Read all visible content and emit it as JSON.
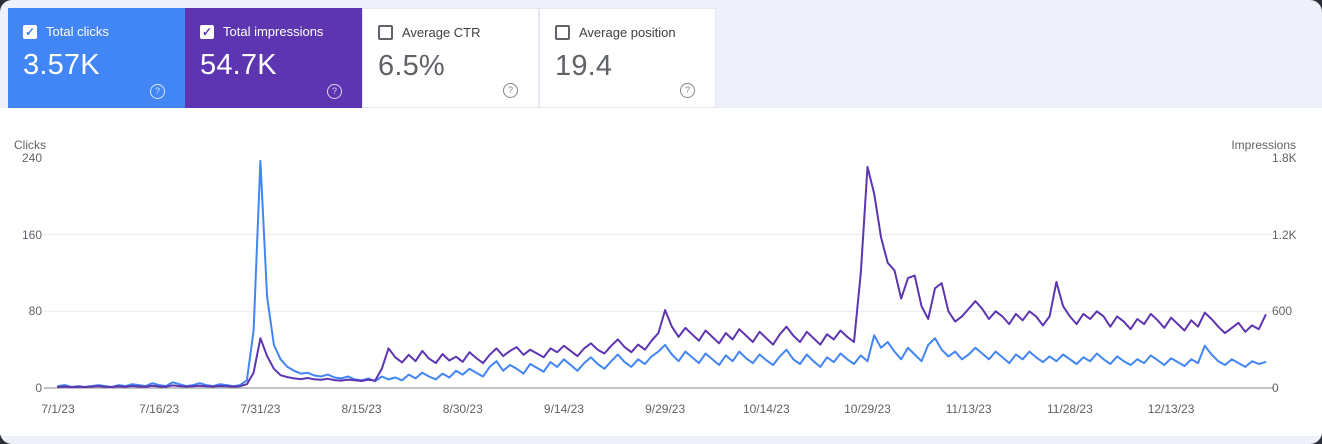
{
  "ui": {
    "check_glyph": "✓",
    "help_glyph": "?"
  },
  "colors": {
    "clicks": "#4285f4",
    "impressions": "#5e35b1"
  },
  "cards": [
    {
      "label": "Total clicks",
      "value": "3.57K",
      "checked": true,
      "color": "#4285f4"
    },
    {
      "label": "Total impressions",
      "value": "54.7K",
      "checked": true,
      "color": "#5e35b1"
    },
    {
      "label": "Average CTR",
      "value": "6.5%",
      "checked": false
    },
    {
      "label": "Average position",
      "value": "19.4",
      "checked": false
    }
  ],
  "chart_data": {
    "type": "line",
    "x_start": "7/1/23",
    "x_end": "12/27/23",
    "x_interval": "daily",
    "x_tick_labels": [
      "7/1/23",
      "7/16/23",
      "7/31/23",
      "8/15/23",
      "8/30/23",
      "9/14/23",
      "9/29/23",
      "10/14/23",
      "10/29/23",
      "11/13/23",
      "11/28/23",
      "12/13/23"
    ],
    "x_tick_days": [
      0,
      15,
      30,
      45,
      60,
      75,
      90,
      105,
      120,
      135,
      150,
      165
    ],
    "grid": "horizontal-light",
    "legend_position": "none",
    "left_axis": {
      "title": "Clicks",
      "ticks": [
        "240",
        "160",
        "80",
        "0"
      ],
      "tick_values": [
        240,
        160,
        80,
        0
      ],
      "max": 240
    },
    "right_axis": {
      "title": "Impressions",
      "ticks": [
        "1.8K",
        "1.2K",
        "600",
        "0"
      ],
      "tick_values": [
        1800,
        1200,
        600,
        0
      ],
      "max": 1800
    },
    "series": [
      {
        "name": "Total clicks",
        "axis": "left",
        "color": "#4285f4",
        "values": [
          2,
          3,
          1,
          2,
          1,
          2,
          3,
          2,
          1,
          3,
          2,
          4,
          3,
          2,
          5,
          3,
          2,
          6,
          4,
          2,
          3,
          5,
          3,
          2,
          4,
          3,
          2,
          3,
          8,
          60,
          237,
          95,
          45,
          30,
          22,
          18,
          15,
          16,
          13,
          12,
          14,
          11,
          10,
          12,
          9,
          8,
          10,
          7,
          12,
          9,
          11,
          8,
          14,
          10,
          16,
          12,
          9,
          15,
          11,
          18,
          14,
          20,
          16,
          12,
          22,
          28,
          18,
          24,
          20,
          15,
          25,
          21,
          17,
          27,
          22,
          30,
          24,
          18,
          26,
          32,
          25,
          20,
          28,
          35,
          27,
          22,
          30,
          25,
          33,
          38,
          45,
          35,
          28,
          38,
          32,
          26,
          36,
          30,
          24,
          34,
          28,
          38,
          31,
          26,
          35,
          29,
          24,
          33,
          40,
          30,
          25,
          35,
          28,
          22,
          32,
          27,
          36,
          30,
          25,
          34,
          28,
          55,
          42,
          48,
          38,
          30,
          42,
          35,
          28,
          45,
          52,
          40,
          33,
          38,
          30,
          35,
          42,
          36,
          30,
          38,
          32,
          26,
          35,
          30,
          38,
          32,
          27,
          33,
          28,
          35,
          30,
          25,
          32,
          28,
          36,
          30,
          25,
          33,
          28,
          24,
          30,
          26,
          34,
          29,
          24,
          31,
          27,
          23,
          30,
          26,
          44,
          35,
          28,
          24,
          30,
          26,
          22,
          28,
          25,
          27
        ]
      },
      {
        "name": "Total impressions",
        "axis": "right",
        "color": "#5e35b1",
        "values": [
          8,
          12,
          6,
          10,
          8,
          12,
          15,
          10,
          8,
          14,
          10,
          16,
          12,
          10,
          18,
          12,
          10,
          20,
          15,
          12,
          14,
          18,
          14,
          12,
          16,
          13,
          11,
          14,
          30,
          120,
          390,
          250,
          150,
          100,
          85,
          75,
          70,
          78,
          68,
          65,
          72,
          62,
          58,
          66,
          60,
          55,
          65,
          58,
          150,
          310,
          240,
          200,
          260,
          210,
          290,
          230,
          195,
          265,
          215,
          245,
          205,
          280,
          235,
          195,
          260,
          310,
          250,
          290,
          320,
          260,
          300,
          270,
          240,
          310,
          280,
          330,
          290,
          250,
          310,
          350,
          300,
          270,
          330,
          380,
          320,
          280,
          340,
          300,
          370,
          430,
          610,
          480,
          400,
          470,
          420,
          370,
          450,
          400,
          350,
          430,
          380,
          460,
          410,
          360,
          440,
          390,
          340,
          420,
          480,
          410,
          360,
          440,
          390,
          340,
          420,
          380,
          450,
          400,
          360,
          900,
          1730,
          1520,
          1180,
          980,
          920,
          700,
          860,
          880,
          640,
          540,
          780,
          820,
          600,
          520,
          560,
          620,
          680,
          620,
          540,
          600,
          560,
          500,
          580,
          530,
          600,
          560,
          490,
          560,
          830,
          640,
          560,
          500,
          580,
          540,
          600,
          560,
          480,
          560,
          520,
          460,
          540,
          500,
          580,
          530,
          470,
          550,
          500,
          450,
          530,
          480,
          590,
          540,
          480,
          430,
          470,
          510,
          440,
          490,
          460,
          570
        ]
      }
    ]
  }
}
